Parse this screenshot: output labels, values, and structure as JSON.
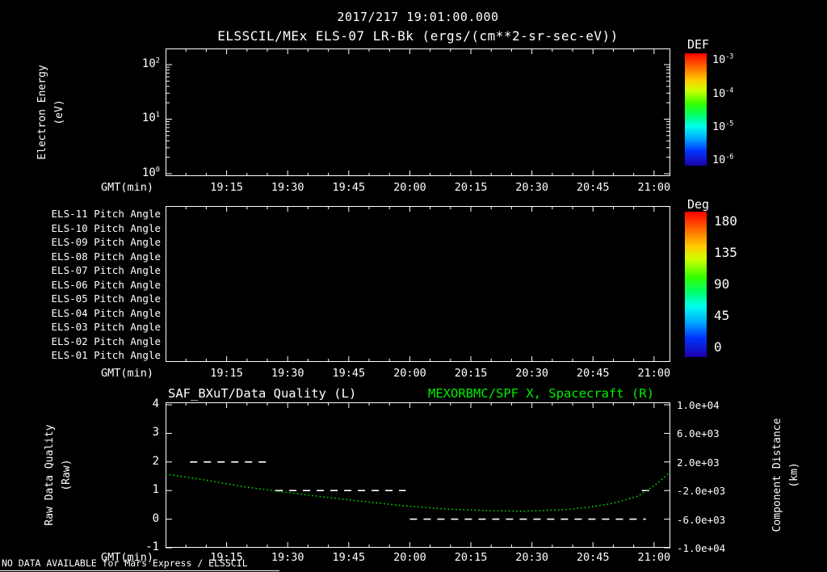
{
  "colors": {
    "foreground": "#ffffff",
    "background": "#000000",
    "accent_green": "#00ee00"
  },
  "header": {
    "timestamp": "2017/217 19:01:00.000",
    "title": "ELSSCIL/MEx ELS-07 LR-Bk (ergs/(cm**2-sr-sec-eV))"
  },
  "x_axis": {
    "label": "GMT(min)",
    "start_time": "19:00",
    "range_minutes": [
      0,
      124
    ],
    "ticks": [
      {
        "label": "19:15",
        "minutes": 15
      },
      {
        "label": "19:30",
        "minutes": 30
      },
      {
        "label": "19:45",
        "minutes": 45
      },
      {
        "label": "20:00",
        "minutes": 60
      },
      {
        "label": "20:15",
        "minutes": 75
      },
      {
        "label": "20:30",
        "minutes": 90
      },
      {
        "label": "20:45",
        "minutes": 105
      },
      {
        "label": "21:00",
        "minutes": 120
      }
    ]
  },
  "panel_energy": {
    "y_label_line1": "Electron Energy",
    "y_label_line2": "(eV)",
    "y_ticks": [
      {
        "base": "10",
        "exp": "2"
      },
      {
        "base": "10",
        "exp": "1"
      },
      {
        "base": "10",
        "exp": "0"
      }
    ],
    "colorbar": {
      "title": "DEF",
      "ticks": [
        {
          "base": "10",
          "exp": "-3"
        },
        {
          "base": "10",
          "exp": "-4"
        },
        {
          "base": "10",
          "exp": "-5"
        },
        {
          "base": "10",
          "exp": "-6"
        }
      ]
    }
  },
  "panel_pitch": {
    "row_labels": [
      "ELS-11 Pitch Angle",
      "ELS-10 Pitch Angle",
      "ELS-09 Pitch Angle",
      "ELS-08 Pitch Angle",
      "ELS-07 Pitch Angle",
      "ELS-06 Pitch Angle",
      "ELS-05 Pitch Angle",
      "ELS-04 Pitch Angle",
      "ELS-03 Pitch Angle",
      "ELS-02 Pitch Angle",
      "ELS-01 Pitch Angle"
    ],
    "colorbar": {
      "title": "Deg",
      "ticks": [
        "180",
        "135",
        "90",
        "45",
        "0"
      ]
    }
  },
  "panel_quality": {
    "left_title": "SAF_BXuT/Data Quality (L)",
    "right_title": "MEXORBMC/SPF X, Spacecraft (R)",
    "y_left_label_line1": "Raw Data Quality",
    "y_left_label_line2": "(Raw)",
    "y_left_ticks": [
      "4",
      "3",
      "2",
      "1",
      "0",
      "-1"
    ],
    "y_right_label_line1": "Component Distance",
    "y_right_label_line2": "(km)",
    "y_right_ticks": [
      "1.0e+04",
      "6.0e+03",
      "2.0e+03",
      "-2.0e+03",
      "-6.0e+03",
      "-1.0e+04"
    ]
  },
  "footer": {
    "message": "NO DATA AVAILABLE for Mars Express / ELSSCIL"
  },
  "chart_data": [
    {
      "type": "heatmap",
      "title": "ELSSCIL/MEx ELS-07 LR-Bk (ergs/(cm**2-sr-sec-eV))",
      "xlabel": "GMT(min)",
      "ylabel": "Electron Energy (eV)",
      "x_tick_labels": [
        "19:15",
        "19:30",
        "19:45",
        "20:00",
        "20:15",
        "20:30",
        "20:45",
        "21:00"
      ],
      "y_scale": "log",
      "y_tick_values": [
        1,
        10,
        100
      ],
      "colorbar_title": "DEF",
      "colorbar_tick_values": [
        0.001,
        0.0001,
        1e-05,
        1e-06
      ],
      "values": []
    },
    {
      "type": "heatmap",
      "xlabel": "GMT(min)",
      "y_categories": [
        "ELS-11 Pitch Angle",
        "ELS-10 Pitch Angle",
        "ELS-09 Pitch Angle",
        "ELS-08 Pitch Angle",
        "ELS-07 Pitch Angle",
        "ELS-06 Pitch Angle",
        "ELS-05 Pitch Angle",
        "ELS-04 Pitch Angle",
        "ELS-03 Pitch Angle",
        "ELS-02 Pitch Angle",
        "ELS-01 Pitch Angle"
      ],
      "x_tick_labels": [
        "19:15",
        "19:30",
        "19:45",
        "20:00",
        "20:15",
        "20:30",
        "20:45",
        "21:00"
      ],
      "colorbar_title": "Deg",
      "colorbar_tick_values": [
        180,
        135,
        90,
        45,
        0
      ],
      "values": []
    },
    {
      "type": "line",
      "titles": {
        "left": "SAF_BXuT/Data Quality (L)",
        "right": "MEXORBMC/SPF X, Spacecraft (R)"
      },
      "xlabel": "GMT(min)",
      "x_tick_labels": [
        "19:15",
        "19:30",
        "19:45",
        "20:00",
        "20:15",
        "20:30",
        "20:45",
        "21:00"
      ],
      "x_unit": "minutes after 19:00",
      "left_axis": {
        "label": "Raw Data Quality (Raw)",
        "range": [
          -1,
          4
        ],
        "ticks": [
          4,
          3,
          2,
          1,
          0,
          -1
        ]
      },
      "right_axis": {
        "label": "Component Distance (km)",
        "range": [
          -10000,
          10000
        ],
        "ticks": [
          10000,
          6000,
          2000,
          -2000,
          -6000,
          -10000
        ]
      },
      "series": [
        {
          "name": "Raw Data Quality",
          "axis": "left",
          "color": "#ffffff",
          "style": "dashed",
          "segments": [
            {
              "start": "19:06",
              "end": "19:26",
              "value": 2
            },
            {
              "start": "19:27",
              "end": "19:59",
              "value": 1
            },
            {
              "start": "20:00",
              "end": "20:58",
              "value": 0
            },
            {
              "start": "20:57",
              "end": "20:59",
              "value": 1
            }
          ]
        },
        {
          "name": "Spacecraft X",
          "axis": "right",
          "color": "#00ee00",
          "style": "dotted",
          "points": [
            [
              0,
              300
            ],
            [
              9,
              -450
            ],
            [
              19,
              -1450
            ],
            [
              29,
              -2200
            ],
            [
              39,
              -2900
            ],
            [
              49,
              -3550
            ],
            [
              58,
              -4100
            ],
            [
              68,
              -4550
            ],
            [
              78,
              -4780
            ],
            [
              88,
              -4890
            ],
            [
              98,
              -4670
            ],
            [
              104,
              -4330
            ],
            [
              110,
              -3780
            ],
            [
              116,
              -2780
            ],
            [
              120,
              -1330
            ],
            [
              124,
              550
            ]
          ]
        }
      ]
    }
  ]
}
